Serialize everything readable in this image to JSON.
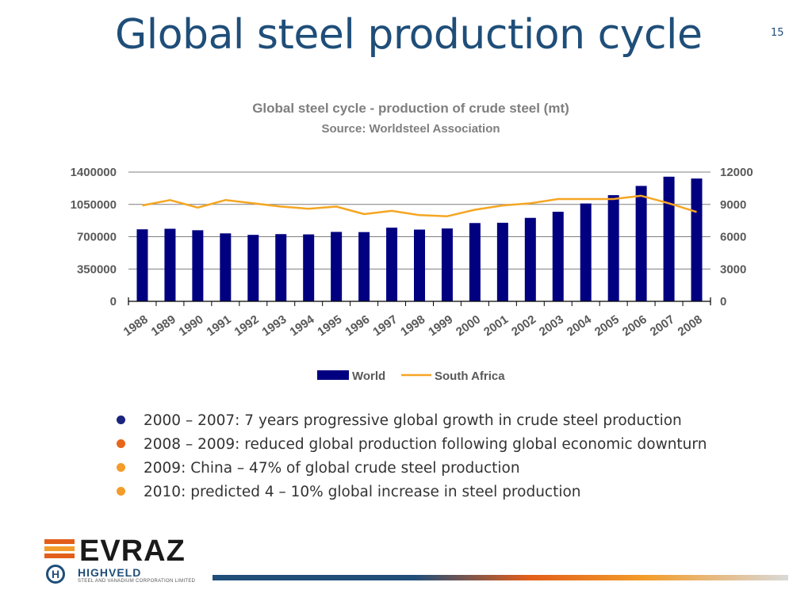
{
  "slide": {
    "title": "Global steel production cycle",
    "page_number": "15"
  },
  "chart_data": {
    "type": "bar+line",
    "title": "Global steel cycle - production of crude steel (mt)",
    "subtitle": "Source: Worldsteel Association",
    "categories": [
      "1988",
      "1989",
      "1990",
      "1991",
      "1992",
      "1993",
      "1994",
      "1995",
      "1996",
      "1997",
      "1998",
      "1999",
      "2000",
      "2001",
      "2002",
      "2003",
      "2004",
      "2005",
      "2006",
      "2007",
      "2008"
    ],
    "y_left": {
      "ticks": [
        "0",
        "350000",
        "700000",
        "1050000",
        "1400000"
      ],
      "range": [
        0,
        1400000
      ]
    },
    "y_right": {
      "ticks": [
        "0",
        "3000",
        "6000",
        "9000",
        "12000"
      ],
      "range": [
        0,
        12000
      ]
    },
    "series": [
      {
        "name": "World",
        "type": "bar",
        "axis": "left",
        "color": "#000080",
        "values": [
          780000,
          786000,
          770000,
          736000,
          720000,
          728000,
          725000,
          752000,
          750000,
          798000,
          777000,
          789000,
          848000,
          851000,
          904000,
          970000,
          1060000,
          1150000,
          1250000,
          1350000,
          1330000
        ]
      },
      {
        "name": "South Africa",
        "type": "line",
        "axis": "right",
        "color": "#f5a623",
        "values": [
          8900,
          9400,
          8700,
          9400,
          9100,
          8800,
          8600,
          8800,
          8100,
          8400,
          8000,
          7900,
          8500,
          8900,
          9100,
          9500,
          9500,
          9500,
          9800,
          9100,
          8300
        ]
      }
    ],
    "legend": "bottom",
    "grid": true
  },
  "bullets": [
    {
      "text": "2000 – 2007: 7 years progressive global growth in crude steel production",
      "color": "#1a237e"
    },
    {
      "text": "2008 – 2009: reduced global production following global economic downturn",
      "color": "#e8651a"
    },
    {
      "text": "2009: China – 47% of global crude steel production",
      "color": "#f39c2a"
    },
    {
      "text": "2010: predicted 4 – 10% global increase in steel production",
      "color": "#f39c2a"
    }
  ],
  "logo": {
    "brand": "EVRAZ",
    "name": "HIGHVELD",
    "tagline": "STEEL AND VANADIUM CORPORATION LIMITED",
    "mark": "H"
  }
}
